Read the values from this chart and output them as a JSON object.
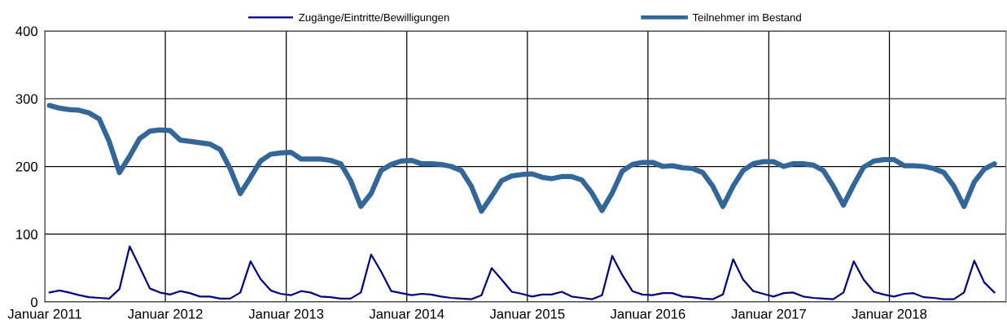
{
  "chart_data": {
    "type": "line",
    "x": [
      "2011-01-15",
      "2011-02-15",
      "2011-03-15",
      "2011-04-15",
      "2011-05-15",
      "2011-06-15",
      "2011-07-15",
      "2011-08-15",
      "2011-09-15",
      "2011-10-15",
      "2011-11-15",
      "2011-12-15",
      "2012-01-15",
      "2012-02-15",
      "2012-03-15",
      "2012-04-15",
      "2012-05-15",
      "2012-06-15",
      "2012-07-15",
      "2012-08-15",
      "2012-09-15",
      "2012-10-15",
      "2012-11-15",
      "2012-12-15",
      "2013-01-15",
      "2013-02-15",
      "2013-03-15",
      "2013-04-15",
      "2013-05-15",
      "2013-06-15",
      "2013-07-15",
      "2013-08-15",
      "2013-09-15",
      "2013-10-15",
      "2013-11-15",
      "2013-12-15",
      "2014-01-15",
      "2014-02-15",
      "2014-03-15",
      "2014-04-15",
      "2014-05-15",
      "2014-06-15",
      "2014-07-15",
      "2014-08-15",
      "2014-09-15",
      "2014-10-15",
      "2014-11-15",
      "2014-12-15",
      "2015-01-15",
      "2015-02-15",
      "2015-03-15",
      "2015-04-15",
      "2015-05-15",
      "2015-06-15",
      "2015-07-15",
      "2015-08-15",
      "2015-09-15",
      "2015-10-15",
      "2015-11-15",
      "2015-12-15",
      "2016-01-15",
      "2016-02-15",
      "2016-03-15",
      "2016-04-15",
      "2016-05-15",
      "2016-06-15",
      "2016-07-15",
      "2016-08-15",
      "2016-09-15",
      "2016-10-15",
      "2016-11-15",
      "2016-12-15",
      "2017-01-15",
      "2017-02-15",
      "2017-03-15",
      "2017-04-15",
      "2017-05-15",
      "2017-06-15",
      "2017-07-15",
      "2017-08-15",
      "2017-09-15",
      "2017-10-15",
      "2017-11-15",
      "2017-12-15",
      "2018-01-15",
      "2018-02-15",
      "2018-03-15",
      "2018-04-15",
      "2018-05-15",
      "2018-06-15",
      "2018-07-15",
      "2018-08-15",
      "2018-09-15",
      "2018-10-15",
      "2018-11-15"
    ],
    "series": [
      {
        "name": "Zugänge/Eintritte/Bewilligungen",
        "color": "#000080",
        "values": [
          14,
          17,
          14,
          10,
          7,
          6,
          5,
          19,
          82,
          52,
          20,
          14,
          11,
          16,
          13,
          8,
          8,
          5,
          5,
          14,
          60,
          34,
          17,
          12,
          10,
          16,
          14,
          8,
          7,
          5,
          5,
          14,
          70,
          45,
          16,
          13,
          10,
          12,
          11,
          8,
          6,
          5,
          4,
          10,
          50,
          33,
          15,
          12,
          8,
          11,
          11,
          15,
          8,
          6,
          4,
          10,
          68,
          40,
          16,
          11,
          10,
          13,
          13,
          8,
          7,
          5,
          4,
          11,
          63,
          33,
          16,
          12,
          8,
          13,
          14,
          8,
          6,
          5,
          4,
          14,
          60,
          33,
          15,
          11,
          8,
          12,
          13,
          7,
          6,
          4,
          4,
          14,
          61,
          29,
          14
        ]
      },
      {
        "name": "Teilnehmer im Bestand",
        "color": "#336699",
        "values": [
          290,
          286,
          284,
          283,
          279,
          270,
          237,
          191,
          215,
          241,
          252,
          254,
          253,
          239,
          237,
          235,
          233,
          225,
          197,
          160,
          184,
          208,
          218,
          220,
          221,
          211,
          211,
          211,
          209,
          204,
          179,
          141,
          160,
          194,
          203,
          208,
          209,
          204,
          204,
          203,
          200,
          194,
          171,
          134,
          156,
          179,
          186,
          188,
          189,
          184,
          182,
          185,
          185,
          180,
          161,
          135,
          161,
          193,
          203,
          206,
          206,
          200,
          201,
          198,
          197,
          191,
          171,
          141,
          171,
          194,
          204,
          207,
          207,
          200,
          204,
          204,
          202,
          194,
          171,
          143,
          173,
          199,
          208,
          210,
          210,
          201,
          201,
          200,
          197,
          191,
          171,
          141,
          177,
          196,
          204
        ]
      }
    ],
    "xlim": [
      "2011-01-01",
      "2018-12-20"
    ],
    "xticks": [
      {
        "value": "2011-01-01",
        "label": "Januar 2011"
      },
      {
        "value": "2012-01-01",
        "label": "Januar 2012"
      },
      {
        "value": "2013-01-01",
        "label": "Januar 2013"
      },
      {
        "value": "2014-01-01",
        "label": "Januar 2014"
      },
      {
        "value": "2015-01-01",
        "label": "Januar 2015"
      },
      {
        "value": "2016-01-01",
        "label": "Januar 2016"
      },
      {
        "value": "2017-01-01",
        "label": "Januar 2017"
      },
      {
        "value": "2018-01-01",
        "label": "Januar 2018"
      }
    ],
    "ylim": [
      0,
      400
    ],
    "yticks": [
      0,
      100,
      200,
      300,
      400
    ],
    "grid": true,
    "legend": "top",
    "marker": "none",
    "line_style": "solid"
  }
}
